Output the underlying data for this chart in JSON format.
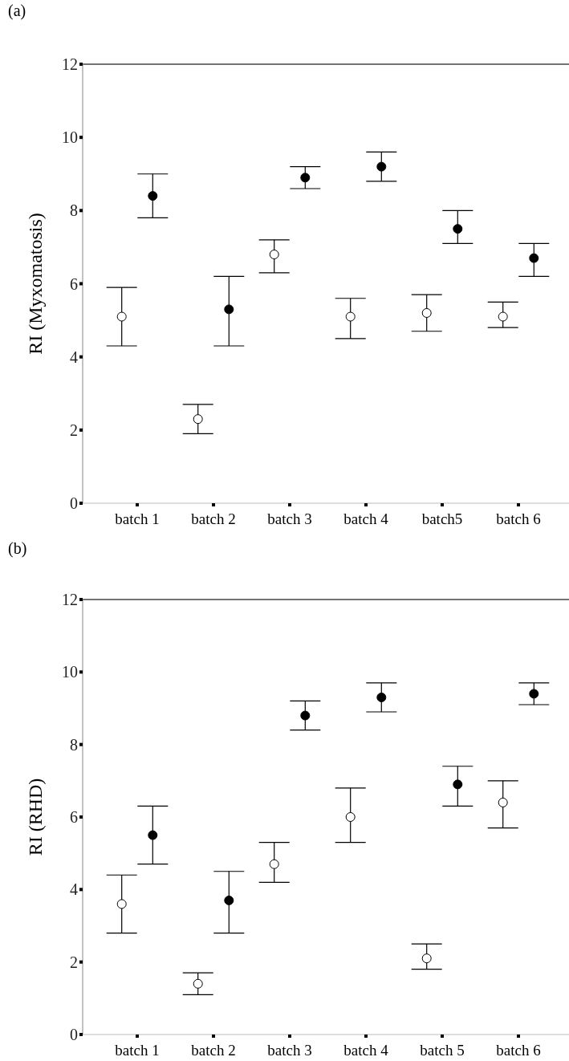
{
  "chart_data": [
    {
      "type": "scatter",
      "title": "(a)",
      "ylabel": "RI (Myxomatosis)",
      "categories": [
        "batch 1",
        "batch 2",
        "batch 3",
        "batch 4",
        "batch5",
        "batch 6"
      ],
      "ylim": [
        0,
        12
      ],
      "yticks": [
        0,
        2,
        4,
        6,
        8,
        10,
        12
      ],
      "marker": "circle",
      "series": [
        {
          "color": "#ffffff",
          "values": [
            5.1,
            2.3,
            6.8,
            5.1,
            5.2,
            5.1
          ],
          "errors": [
            [
              4.3,
              5.9
            ],
            [
              1.9,
              2.7
            ],
            [
              6.3,
              7.2
            ],
            [
              4.5,
              5.6
            ],
            [
              4.7,
              5.7
            ],
            [
              4.8,
              5.5
            ]
          ]
        },
        {
          "color": "#000000",
          "values": [
            8.4,
            5.3,
            8.9,
            9.2,
            7.5,
            6.7
          ],
          "errors": [
            [
              7.8,
              9.0
            ],
            [
              4.3,
              6.2
            ],
            [
              8.6,
              9.2
            ],
            [
              8.8,
              9.6
            ],
            [
              7.1,
              8.0
            ],
            [
              6.2,
              7.1
            ]
          ]
        }
      ]
    },
    {
      "type": "scatter",
      "title": "(b)",
      "ylabel": "RI (RHD)",
      "categories": [
        "batch 1",
        "batch 2",
        "batch 3",
        "batch 4",
        "batch 5",
        "batch 6"
      ],
      "ylim": [
        0,
        12
      ],
      "yticks": [
        0,
        2,
        4,
        6,
        8,
        10,
        12
      ],
      "marker": "circle",
      "series": [
        {
          "color": "#ffffff",
          "values": [
            3.6,
            1.4,
            4.7,
            6.0,
            2.1,
            6.4
          ],
          "errors": [
            [
              2.8,
              4.4
            ],
            [
              1.1,
              1.7
            ],
            [
              4.2,
              5.3
            ],
            [
              5.3,
              6.8
            ],
            [
              1.8,
              2.5
            ],
            [
              5.7,
              7.0
            ]
          ]
        },
        {
          "color": "#000000",
          "values": [
            5.5,
            3.7,
            8.8,
            9.3,
            6.9,
            9.4
          ],
          "errors": [
            [
              4.7,
              6.3
            ],
            [
              2.8,
              4.5
            ],
            [
              8.4,
              9.2
            ],
            [
              8.9,
              9.7
            ],
            [
              6.3,
              7.4
            ],
            [
              9.1,
              9.7
            ]
          ]
        }
      ]
    }
  ]
}
